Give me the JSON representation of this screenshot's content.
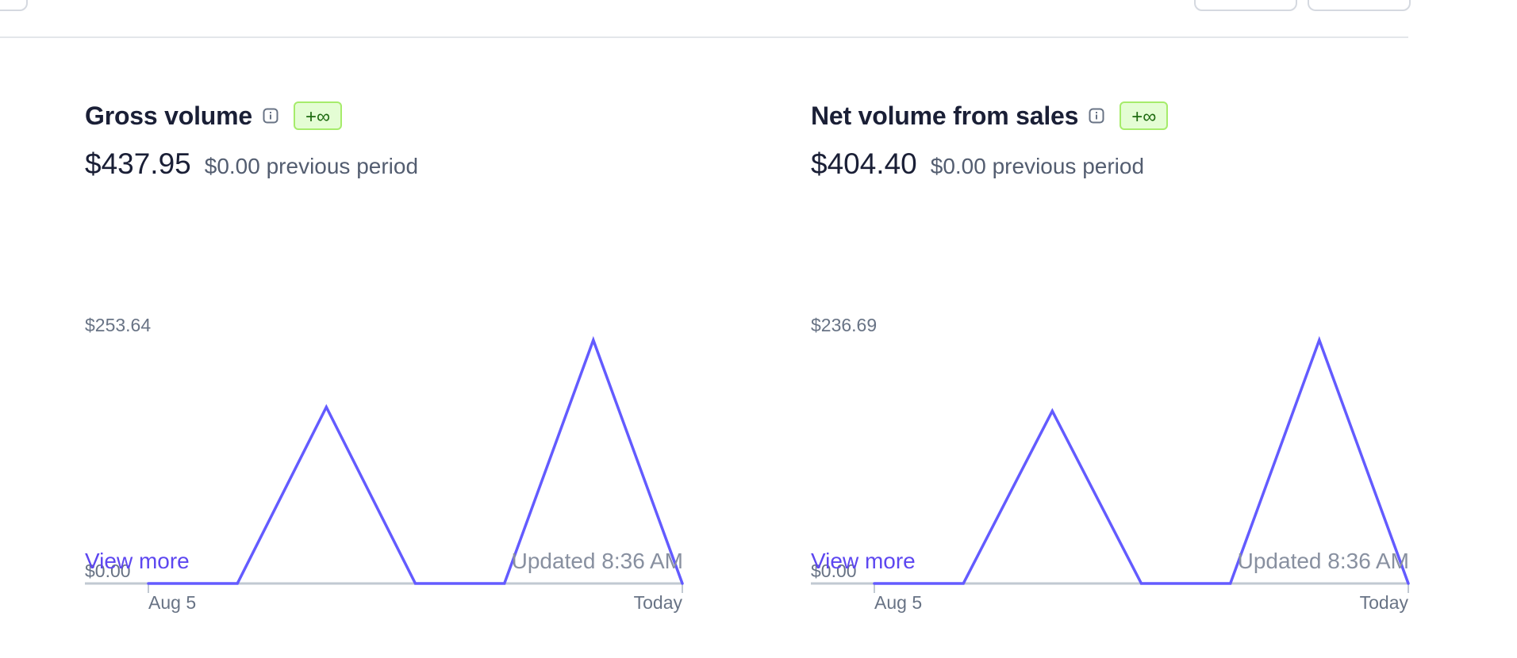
{
  "colors": {
    "line": "#635bff",
    "baseline": "#c1c9d2",
    "link": "#5d47f0",
    "badge_bg": "#e4fdd4",
    "badge_border": "#a6ec6b",
    "badge_text": "#1d6a10"
  },
  "cards": [
    {
      "title": "Gross volume",
      "info_icon": "info-icon",
      "badge": "+∞",
      "amount": "$437.95",
      "previous": "$0.00 previous period",
      "view_more": "View more",
      "updated": "Updated 8:36 AM"
    },
    {
      "title": "Net volume from sales",
      "info_icon": "info-icon",
      "badge": "+∞",
      "amount": "$404.40",
      "previous": "$0.00 previous period",
      "view_more": "View more",
      "updated": "Updated 8:36 AM"
    }
  ],
  "chart_data": [
    {
      "type": "line",
      "title": "Gross volume",
      "x": [
        "Aug 5",
        "",
        "",
        "",
        "",
        "",
        "Today"
      ],
      "series": [
        {
          "values": [
            0,
            0,
            183.8,
            0,
            0,
            253.64,
            0
          ]
        }
      ],
      "ylim": [
        0,
        253.64
      ],
      "ytick_labels": [
        "$253.64",
        "$0.00"
      ],
      "xtick_labels": [
        "Aug 5",
        "Today"
      ],
      "grid": false
    },
    {
      "type": "line",
      "title": "Net volume from sales",
      "x": [
        "Aug 5",
        "",
        "",
        "",
        "",
        "",
        "Today"
      ],
      "series": [
        {
          "values": [
            0,
            0,
            167.7,
            0,
            0,
            236.69,
            0
          ]
        }
      ],
      "ylim": [
        0,
        236.69
      ],
      "ytick_labels": [
        "$236.69",
        "$0.00"
      ],
      "xtick_labels": [
        "Aug 5",
        "Today"
      ],
      "grid": false
    }
  ]
}
